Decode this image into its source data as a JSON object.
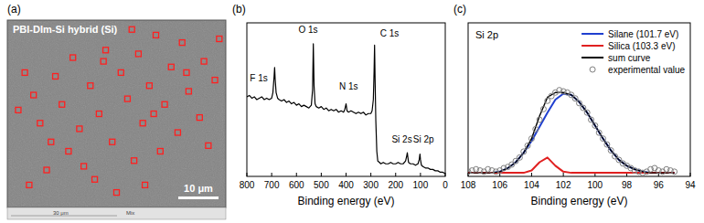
{
  "chart_data": [
    {
      "type": "scatter",
      "panel": "(a)",
      "title": "PBI-DIm-Si hybrid (Si)",
      "scale_bar": "10 μm",
      "footer_labels": [
        "30 μm",
        "Mix"
      ],
      "marker": "square",
      "color": "#ff2020",
      "tick_labels": false,
      "xlim": [
        0,
        100
      ],
      "ylim": [
        0,
        100
      ],
      "x": [
        8,
        12,
        5,
        15,
        22,
        25,
        30,
        33,
        28,
        18,
        10,
        38,
        42,
        45,
        48,
        52,
        55,
        58,
        60,
        62,
        65,
        68,
        70,
        72,
        75,
        78,
        80,
        83,
        88,
        90,
        92,
        95,
        97,
        40,
        50,
        35,
        20,
        63,
        44,
        57,
        67,
        82
      ],
      "values": [
        72,
        60,
        52,
        45,
        70,
        55,
        80,
        42,
        30,
        20,
        12,
        65,
        50,
        84,
        35,
        72,
        58,
        25,
        82,
        45,
        65,
        92,
        30,
        55,
        75,
        40,
        88,
        62,
        48,
        78,
        33,
        68,
        90,
        15,
        8,
        22,
        35,
        12,
        78,
        95,
        50,
        72
      ]
    },
    {
      "type": "line",
      "panel": "(b)",
      "x_label": "Binding energy (eV)",
      "color": "#000000",
      "tick_labels": "x",
      "xlim": [
        800,
        0
      ],
      "xticks": [
        800,
        700,
        600,
        500,
        400,
        300,
        200,
        100,
        0
      ],
      "ylim": [
        0,
        110
      ],
      "x": [
        800,
        790,
        780,
        770,
        760,
        750,
        740,
        730,
        720,
        710,
        700,
        695,
        690,
        688,
        686,
        682,
        676,
        670,
        660,
        650,
        640,
        630,
        620,
        610,
        600,
        590,
        580,
        570,
        560,
        550,
        540,
        535,
        532,
        529,
        525,
        520,
        510,
        500,
        490,
        480,
        470,
        460,
        450,
        440,
        430,
        420,
        410,
        405,
        400,
        396,
        390,
        380,
        370,
        360,
        350,
        340,
        330,
        320,
        310,
        300,
        295,
        290,
        287,
        285,
        283,
        280,
        276,
        272,
        265,
        260,
        250,
        240,
        230,
        220,
        210,
        200,
        190,
        180,
        170,
        160,
        155,
        153,
        151,
        148,
        140,
        130,
        120,
        110,
        105,
        102,
        100,
        96,
        90,
        80,
        70,
        60,
        50,
        40,
        30,
        20,
        10,
        0
      ],
      "values": [
        57,
        58,
        56,
        57,
        55,
        56,
        57,
        55,
        56,
        55,
        56,
        60,
        72,
        78,
        70,
        60,
        56,
        55,
        54,
        55,
        53,
        54,
        52,
        53,
        51,
        52,
        50,
        51,
        50,
        49,
        51,
        62,
        95,
        65,
        52,
        50,
        49,
        50,
        48,
        49,
        47,
        48,
        47,
        48,
        46,
        47,
        46,
        48,
        52,
        47,
        46,
        47,
        46,
        45,
        46,
        45,
        46,
        44,
        45,
        45,
        47,
        55,
        75,
        94,
        70,
        40,
        18,
        11,
        10,
        9,
        10,
        9,
        9,
        10,
        9,
        9,
        10,
        9,
        9,
        11,
        15,
        17,
        14,
        10,
        9,
        9,
        8,
        9,
        12,
        16,
        12,
        8,
        7,
        6,
        6,
        5,
        5,
        4,
        4,
        3,
        3,
        2
      ],
      "annotations": [
        {
          "text": "F 1s",
          "x": 752,
          "y": 68
        },
        {
          "text": "O 1s",
          "x": 553,
          "y": 103
        },
        {
          "text": "N 1s",
          "x": 390,
          "y": 62
        },
        {
          "text": "C 1s",
          "x": 225,
          "y": 100
        },
        {
          "text": "Si 2s",
          "x": 175,
          "y": 24
        },
        {
          "text": "Si 2p",
          "x": 88,
          "y": 24
        }
      ]
    },
    {
      "type": "line",
      "panel": "(c)",
      "title": "Si 2p",
      "x_label": "Binding energy (eV)",
      "tick_labels": "x",
      "legend": "upper right",
      "xlim": [
        108,
        94
      ],
      "xticks": [
        108,
        106,
        104,
        102,
        100,
        98,
        96,
        94
      ],
      "ylim": [
        0,
        130
      ],
      "series": [
        {
          "name": "Silane (101.7 eV)",
          "color": "#1f3fd0",
          "type": "line",
          "line_style": "solid",
          "x": [
            108,
            107.5,
            107,
            106.5,
            106,
            105.5,
            105,
            104.5,
            104,
            103.5,
            103,
            102.5,
            102,
            101.5,
            101,
            100.5,
            100,
            99.5,
            99,
            98.5,
            98,
            97.5,
            97,
            96.5,
            96,
            95.5,
            95
          ],
          "values": [
            3,
            3,
            3,
            3,
            4,
            7,
            12,
            20,
            30,
            42,
            54,
            65,
            70,
            69,
            63,
            54,
            43,
            32,
            22,
            14,
            9,
            6,
            4,
            3,
            3,
            3,
            3
          ]
        },
        {
          "name": "Silica (103.3 eV)",
          "color": "#e02020",
          "type": "line",
          "line_style": "solid",
          "x": [
            108,
            107.5,
            107,
            106.5,
            106,
            105.5,
            105,
            104.5,
            104,
            103.5,
            103,
            102.5,
            102,
            101.5,
            101,
            100.5,
            100,
            99.5,
            99,
            98.5,
            98,
            97.5,
            97,
            96.5,
            96,
            95.5,
            95
          ],
          "values": [
            3,
            3,
            3,
            3,
            3,
            3,
            3,
            3,
            5,
            12,
            16,
            9,
            4,
            3,
            3,
            3,
            3,
            3,
            3,
            3,
            3,
            3,
            3,
            3,
            3,
            3,
            3
          ]
        },
        {
          "name": "sum curve",
          "color": "#000000",
          "type": "line",
          "line_style": "solid",
          "x": [
            108,
            107.5,
            107,
            106.5,
            106,
            105.5,
            105,
            104.5,
            104,
            103.5,
            103,
            102.5,
            102,
            101.5,
            101,
            100.5,
            100,
            99.5,
            99,
            98.5,
            98,
            97.5,
            97,
            96.5,
            96,
            95.5,
            95
          ],
          "values": [
            3,
            3,
            3,
            3,
            4,
            7,
            12,
            20,
            32,
            51,
            67,
            71,
            71,
            69,
            63,
            54,
            43,
            32,
            22,
            14,
            9,
            6,
            4,
            3,
            3,
            3,
            3
          ]
        },
        {
          "name": "experimental value",
          "color": "#808080",
          "type": "scatter",
          "marker": "circle",
          "x": [
            108,
            107.75,
            107.5,
            107.25,
            107,
            106.75,
            106.5,
            106.25,
            106,
            105.75,
            105.5,
            105.25,
            105,
            104.75,
            104.5,
            104.25,
            104,
            103.75,
            103.5,
            103.25,
            103,
            102.75,
            102.5,
            102.25,
            102,
            101.75,
            101.5,
            101.25,
            101,
            100.75,
            100.5,
            100.25,
            100,
            99.75,
            99.5,
            99.25,
            99,
            98.75,
            98.5,
            98.25,
            98,
            97.75,
            97.5,
            97.25,
            97,
            96.75,
            96.5,
            96.25,
            96,
            95.75,
            95.5,
            95.25,
            95
          ],
          "values": [
            4,
            5,
            6,
            5,
            4,
            6,
            5,
            4,
            5,
            7,
            8,
            10,
            13,
            16,
            21,
            26,
            32,
            40,
            48,
            57,
            64,
            68,
            71,
            73,
            72,
            71,
            69,
            66,
            62,
            58,
            54,
            48,
            43,
            37,
            32,
            27,
            22,
            17,
            14,
            11,
            9,
            7,
            5,
            4,
            3,
            4,
            6,
            7,
            5,
            4,
            6,
            5,
            4
          ]
        }
      ]
    }
  ]
}
